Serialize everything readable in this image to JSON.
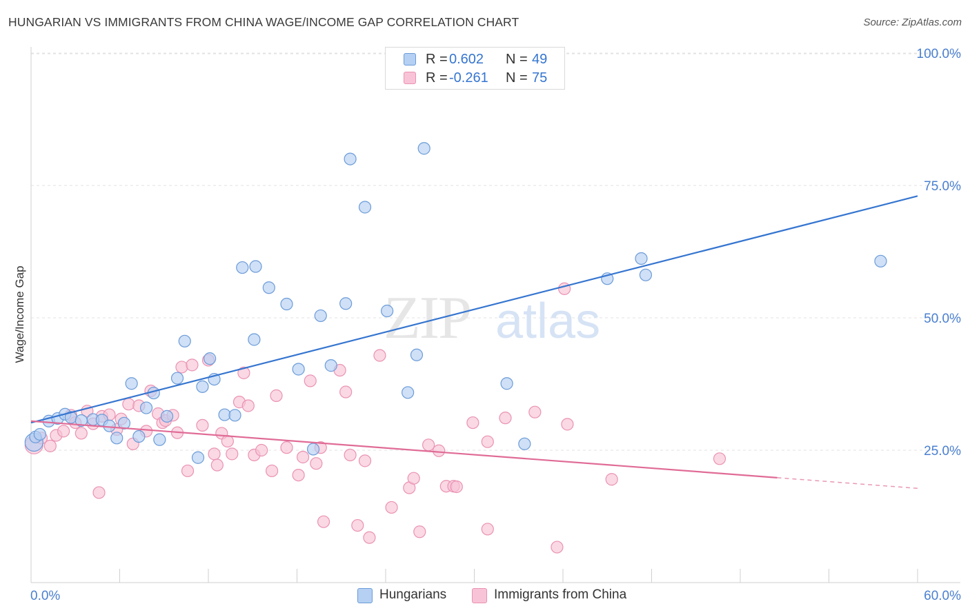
{
  "header": {
    "title": "HUNGARIAN VS IMMIGRANTS FROM CHINA WAGE/INCOME GAP CORRELATION CHART",
    "source": "Source: ZipAtlas.com"
  },
  "legend": {
    "series": [
      {
        "r_label": "R =",
        "r_value": "0.602",
        "n_label": "N =",
        "n_value": "49"
      },
      {
        "r_label": "R =",
        "r_value": "-0.261",
        "n_label": "N =",
        "n_value": "75"
      }
    ]
  },
  "bottom_legend": {
    "hungarians": "Hungarians",
    "china": "Immigrants from China"
  },
  "colors": {
    "blue_fill": "#b5d0f2",
    "blue_stroke": "#6b9bd8",
    "blue_line": "#3575d0",
    "pink_fill": "#f8c3d6",
    "pink_stroke": "#ea92b2",
    "pink_line": "#e06b96",
    "tick_label": "#4a7fd0",
    "grid": "#e2e2e2"
  },
  "chart_data": {
    "type": "scatter",
    "title": "HUNGARIAN VS IMMIGRANTS FROM CHINA WAGE/INCOME GAP CORRELATION CHART",
    "xlabel": "",
    "ylabel": "Wage/Income Gap",
    "xlim": [
      0,
      60
    ],
    "ylim": [
      0,
      105
    ],
    "x_tick_labels": [
      "0.0%",
      "60.0%"
    ],
    "y_ticks": [
      25,
      50,
      75,
      100
    ],
    "y_tick_labels": [
      "25.0%",
      "50.0%",
      "75.0%",
      "100.0%"
    ],
    "grid": true,
    "watermark": "ZIPatlas",
    "series": [
      {
        "name": "Hungarians",
        "r": 0.602,
        "n": 49,
        "trend": {
          "x0": 0,
          "y0": 30.2,
          "x1": 60,
          "y1": 73.0,
          "dashed_from": null
        },
        "points": [
          [
            0.2,
            26.5
          ],
          [
            0.3,
            27.5
          ],
          [
            0.6,
            28.0
          ],
          [
            1.2,
            30.5
          ],
          [
            1.8,
            31.0
          ],
          [
            2.3,
            31.8
          ],
          [
            2.7,
            31.2
          ],
          [
            3.4,
            30.6
          ],
          [
            4.2,
            30.8
          ],
          [
            4.8,
            30.7
          ],
          [
            5.3,
            29.6
          ],
          [
            5.8,
            27.3
          ],
          [
            6.3,
            30.1
          ],
          [
            6.8,
            37.6
          ],
          [
            7.3,
            27.6
          ],
          [
            7.8,
            33.0
          ],
          [
            8.3,
            35.8
          ],
          [
            8.7,
            27.0
          ],
          [
            9.2,
            31.4
          ],
          [
            9.9,
            38.6
          ],
          [
            10.4,
            45.6
          ],
          [
            11.3,
            23.6
          ],
          [
            11.6,
            37.0
          ],
          [
            12.1,
            42.3
          ],
          [
            12.4,
            38.4
          ],
          [
            13.1,
            31.7
          ],
          [
            13.8,
            31.6
          ],
          [
            14.3,
            59.5
          ],
          [
            15.2,
            59.7
          ],
          [
            15.1,
            45.9
          ],
          [
            16.1,
            55.7
          ],
          [
            17.3,
            52.6
          ],
          [
            18.1,
            40.3
          ],
          [
            19.1,
            25.2
          ],
          [
            19.6,
            50.4
          ],
          [
            20.3,
            41.0
          ],
          [
            21.3,
            52.7
          ],
          [
            21.6,
            80.0
          ],
          [
            22.6,
            70.9
          ],
          [
            24.1,
            51.3
          ],
          [
            25.5,
            35.9
          ],
          [
            26.1,
            43.0
          ],
          [
            26.6,
            82.0
          ],
          [
            32.2,
            37.6
          ],
          [
            33.4,
            26.2
          ],
          [
            39.0,
            57.4
          ],
          [
            41.3,
            61.2
          ],
          [
            41.6,
            58.1
          ],
          [
            57.5,
            60.7
          ]
        ]
      },
      {
        "name": "Immigrants from China",
        "r": -0.261,
        "n": 75,
        "trend": {
          "x0": 0,
          "y0": 30.5,
          "x1": 60,
          "y1": 17.8,
          "dashed_from": 50.5
        },
        "points": [
          [
            0.2,
            26.0
          ],
          [
            0.7,
            27.3
          ],
          [
            1.3,
            25.8
          ],
          [
            1.7,
            27.8
          ],
          [
            2.2,
            28.6
          ],
          [
            2.7,
            31.6
          ],
          [
            3.0,
            30.2
          ],
          [
            3.4,
            28.2
          ],
          [
            3.8,
            32.4
          ],
          [
            4.2,
            30.0
          ],
          [
            4.6,
            17.0
          ],
          [
            4.8,
            31.4
          ],
          [
            5.3,
            31.7
          ],
          [
            5.8,
            28.9
          ],
          [
            6.1,
            30.9
          ],
          [
            6.6,
            33.7
          ],
          [
            6.9,
            26.2
          ],
          [
            7.3,
            33.4
          ],
          [
            7.8,
            28.6
          ],
          [
            8.1,
            36.2
          ],
          [
            8.6,
            31.9
          ],
          [
            8.9,
            30.2
          ],
          [
            9.1,
            30.6
          ],
          [
            9.6,
            31.6
          ],
          [
            9.9,
            28.3
          ],
          [
            10.2,
            40.7
          ],
          [
            10.6,
            21.1
          ],
          [
            10.9,
            41.1
          ],
          [
            11.6,
            29.7
          ],
          [
            12.0,
            42.0
          ],
          [
            12.4,
            24.3
          ],
          [
            12.6,
            22.2
          ],
          [
            12.9,
            28.2
          ],
          [
            13.3,
            26.7
          ],
          [
            13.6,
            24.3
          ],
          [
            14.1,
            34.1
          ],
          [
            14.4,
            39.6
          ],
          [
            14.7,
            33.4
          ],
          [
            15.1,
            24.1
          ],
          [
            15.6,
            25.0
          ],
          [
            16.3,
            21.1
          ],
          [
            16.6,
            35.3
          ],
          [
            17.3,
            25.5
          ],
          [
            18.1,
            20.3
          ],
          [
            18.4,
            23.7
          ],
          [
            18.9,
            38.1
          ],
          [
            19.3,
            22.5
          ],
          [
            19.6,
            25.5
          ],
          [
            19.8,
            11.5
          ],
          [
            20.9,
            40.1
          ],
          [
            21.3,
            36.0
          ],
          [
            21.6,
            24.1
          ],
          [
            22.1,
            10.8
          ],
          [
            22.6,
            23.0
          ],
          [
            22.9,
            8.5
          ],
          [
            23.6,
            42.9
          ],
          [
            24.4,
            14.2
          ],
          [
            25.6,
            17.9
          ],
          [
            25.9,
            19.7
          ],
          [
            26.3,
            9.6
          ],
          [
            26.9,
            26.0
          ],
          [
            27.6,
            24.9
          ],
          [
            28.1,
            18.2
          ],
          [
            28.6,
            18.2
          ],
          [
            28.8,
            18.1
          ],
          [
            29.9,
            30.2
          ],
          [
            30.9,
            10.1
          ],
          [
            30.9,
            26.6
          ],
          [
            32.1,
            31.1
          ],
          [
            34.1,
            32.2
          ],
          [
            35.6,
            6.7
          ],
          [
            36.1,
            55.5
          ],
          [
            36.3,
            29.9
          ],
          [
            39.3,
            19.5
          ],
          [
            46.6,
            23.4
          ]
        ]
      }
    ]
  }
}
